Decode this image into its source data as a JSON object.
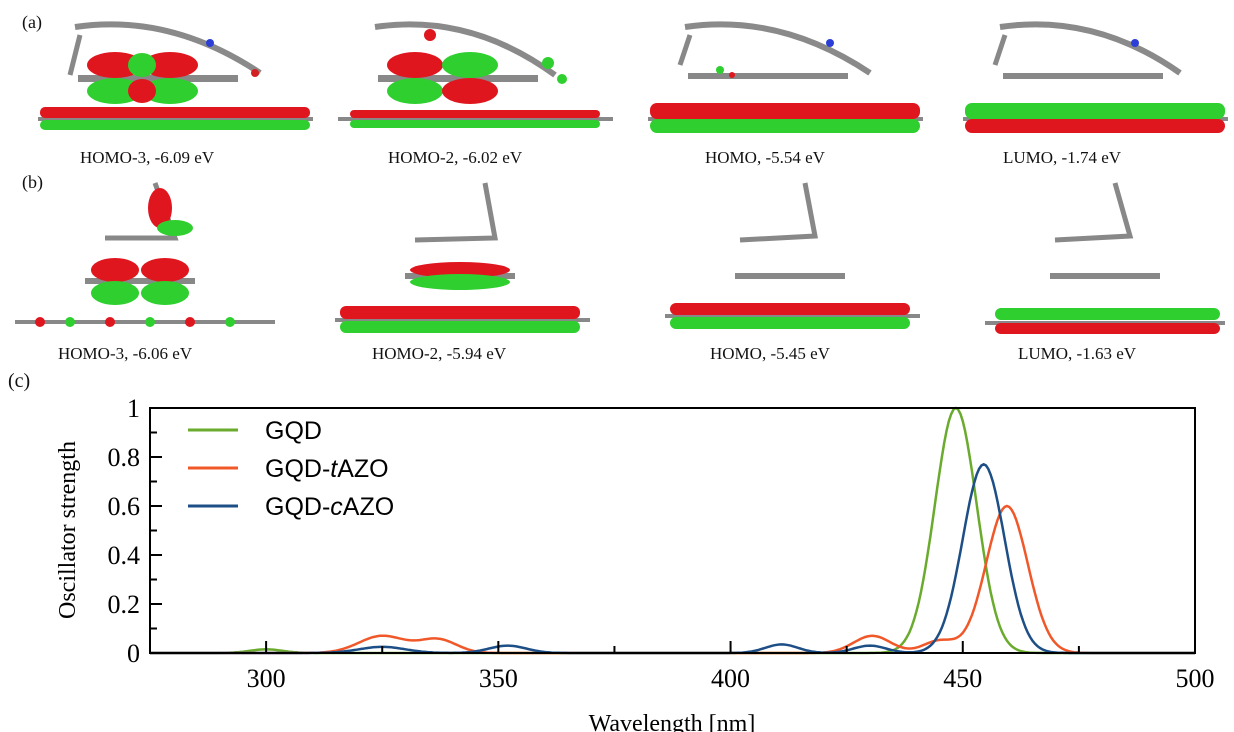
{
  "figure": {
    "panels": [
      "(a)",
      "(b)",
      "(c)"
    ],
    "row_a": [
      {
        "caption": "HOMO-3, -6.09 eV",
        "orbital": "HOMO-3",
        "energy_eV": -6.09
      },
      {
        "caption": "HOMO-2, -6.02 eV",
        "orbital": "HOMO-2",
        "energy_eV": -6.02
      },
      {
        "caption": "HOMO, -5.54 eV",
        "orbital": "HOMO",
        "energy_eV": -5.54
      },
      {
        "caption": "LUMO, -1.74 eV",
        "orbital": "LUMO",
        "energy_eV": -1.74
      }
    ],
    "row_b": [
      {
        "caption": "HOMO-3, -6.06 eV",
        "orbital": "HOMO-3",
        "energy_eV": -6.06
      },
      {
        "caption": "HOMO-2, -5.94 eV",
        "orbital": "HOMO-2",
        "energy_eV": -5.94
      },
      {
        "caption": "HOMO, -5.45 eV",
        "orbital": "HOMO",
        "energy_eV": -5.45
      },
      {
        "caption": "LUMO, -1.63 eV",
        "orbital": "LUMO",
        "energy_eV": -1.63
      }
    ],
    "orbital_colors": {
      "positive": "#e0161f",
      "negative": "#2fcf2f",
      "carbon": "#7a7a7a",
      "nitrogen": "#2b3fd6",
      "oxygen": "#d42020"
    }
  },
  "chart_data": {
    "type": "line",
    "title": "",
    "xlabel": "Wavelength [nm]",
    "ylabel": "Oscillator strength",
    "xlim": [
      275,
      500
    ],
    "ylim": [
      0,
      1
    ],
    "xticks": [
      300,
      350,
      400,
      450,
      500
    ],
    "yticks": [
      0,
      0.2,
      0.4,
      0.6,
      0.8,
      1
    ],
    "ytick_labels": [
      "0",
      "0.2",
      "0.4",
      "0.6",
      "0.8",
      "1"
    ],
    "legend_position": "top-left",
    "grid": false,
    "series": [
      {
        "name": "GQD",
        "name_prefix": "GQD",
        "name_italic": "",
        "name_suffix": "",
        "color": "#6aab2e",
        "peaks": [
          [
            300,
            0.015,
            3.5
          ],
          [
            448.5,
            1.0,
            4.5
          ]
        ]
      },
      {
        "name": "GQD-tAZO",
        "name_prefix": "GQD-",
        "name_italic": "t",
        "name_suffix": "AZO",
        "color": "#f0582a",
        "peaks": [
          [
            325,
            0.07,
            5
          ],
          [
            337,
            0.055,
            4
          ],
          [
            430.5,
            0.07,
            4
          ],
          [
            445,
            0.05,
            3.5
          ],
          [
            459.5,
            0.6,
            4.5
          ]
        ]
      },
      {
        "name": "GQD-cAZO",
        "name_prefix": "GQD-",
        "name_italic": "c",
        "name_suffix": "AZO",
        "color": "#1d4f86",
        "peaks": [
          [
            325,
            0.025,
            5
          ],
          [
            352,
            0.03,
            4
          ],
          [
            411,
            0.035,
            3.5
          ],
          [
            430,
            0.03,
            3.5
          ],
          [
            454.5,
            0.77,
            4.5
          ]
        ]
      }
    ]
  }
}
